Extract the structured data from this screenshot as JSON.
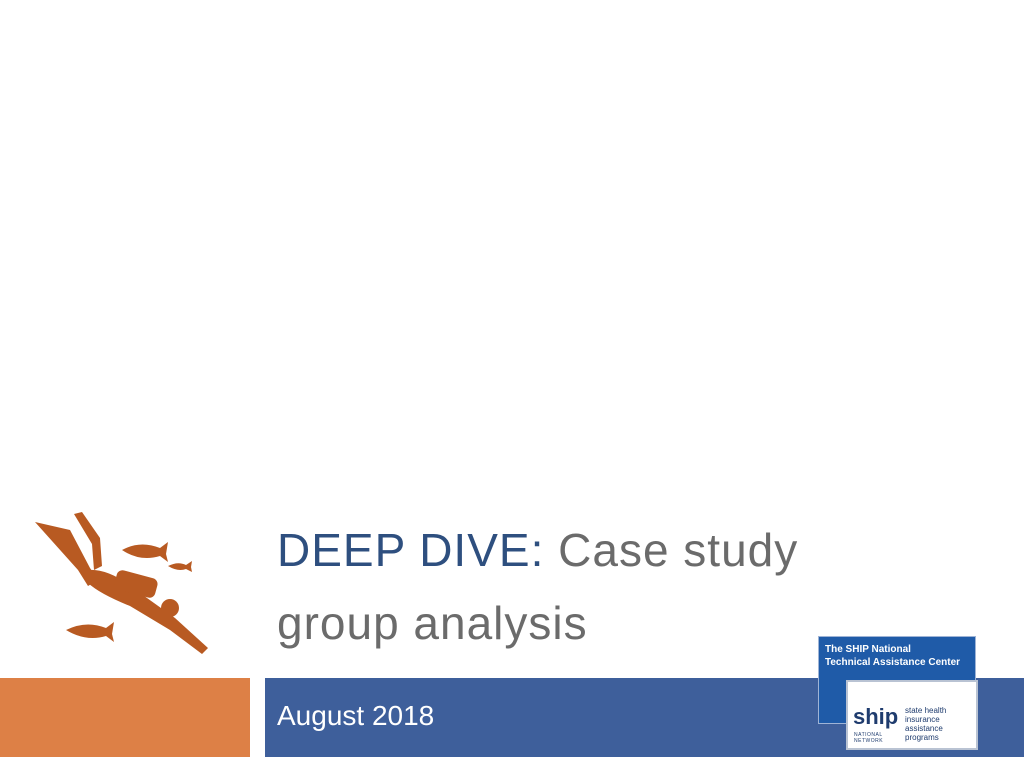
{
  "slide": {
    "title_lead": "DEEP DIVE:",
    "title_rest": "Case study group analysis",
    "subtitle": "August 2018",
    "logo": {
      "header_line1": "The SHIP National",
      "header_line2": "Technical Assistance Center",
      "mark": "ship",
      "tagline1": "state health insurance",
      "tagline2": "assistance programs",
      "network1": "NATIONAL",
      "network2": "NETWORK"
    }
  }
}
